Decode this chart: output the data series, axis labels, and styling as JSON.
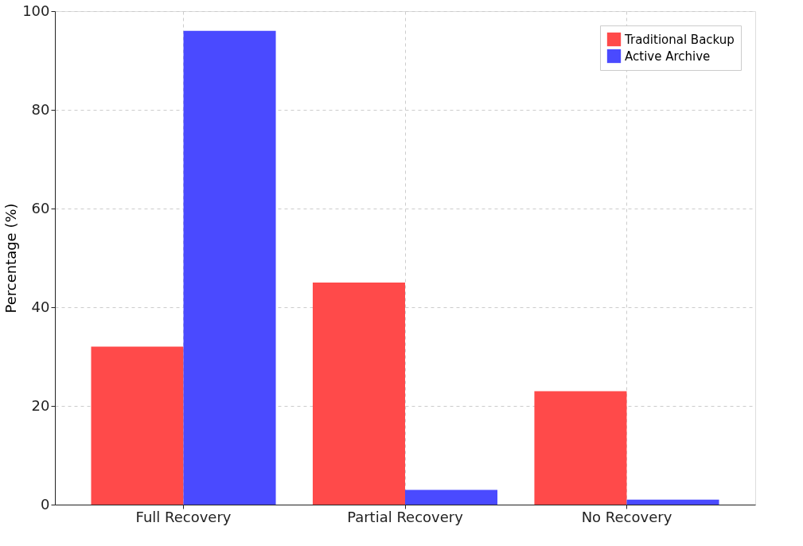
{
  "chart_data": {
    "type": "bar",
    "ylabel": "Percentage (%)",
    "categories": [
      "Full Recovery",
      "Partial Recovery",
      "No Recovery"
    ],
    "series": [
      {
        "name": "Traditional Backup",
        "color": "#ff4a4a",
        "values": [
          32,
          45,
          23
        ]
      },
      {
        "name": "Active Archive",
        "color": "#4a4aff",
        "values": [
          96,
          3,
          1
        ]
      }
    ],
    "ylim": [
      0,
      100
    ],
    "yticks": [
      0,
      20,
      40,
      60,
      80,
      100
    ],
    "grid": true,
    "legend": "top right"
  }
}
